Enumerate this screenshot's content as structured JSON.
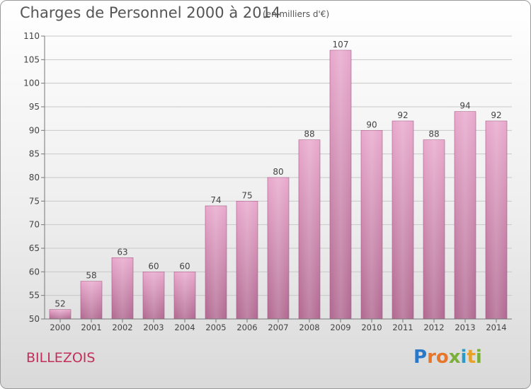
{
  "title": "Charges de Personnel 2000 à 2014",
  "subtitle": "(en milliers d'€)",
  "commune": "BILLEZOIS",
  "logo": {
    "text": "Proxiti",
    "letters": [
      {
        "ch": "P",
        "color": "#2a78c8"
      },
      {
        "ch": "r",
        "color": "#e8762a"
      },
      {
        "ch": "o",
        "color": "#e8762a"
      },
      {
        "ch": "x",
        "color": "#7ab03a"
      },
      {
        "ch": "i",
        "color": "#2a9ac8"
      },
      {
        "ch": "t",
        "color": "#e8a22a"
      },
      {
        "ch": "i",
        "color": "#7ab03a"
      }
    ]
  },
  "chart_data": {
    "type": "bar",
    "categories": [
      "2000",
      "2001",
      "2002",
      "2003",
      "2004",
      "2005",
      "2006",
      "2007",
      "2008",
      "2009",
      "2010",
      "2011",
      "2012",
      "2013",
      "2014"
    ],
    "values": [
      52,
      58,
      63,
      60,
      60,
      74,
      75,
      80,
      88,
      107,
      90,
      92,
      88,
      94,
      92
    ],
    "ylim": [
      50,
      110
    ],
    "yticks": [
      50,
      55,
      60,
      65,
      70,
      75,
      80,
      85,
      90,
      95,
      100,
      105,
      110
    ],
    "grid": true,
    "bar_color": "#d98fb8",
    "xlabel": "",
    "ylabel": ""
  }
}
